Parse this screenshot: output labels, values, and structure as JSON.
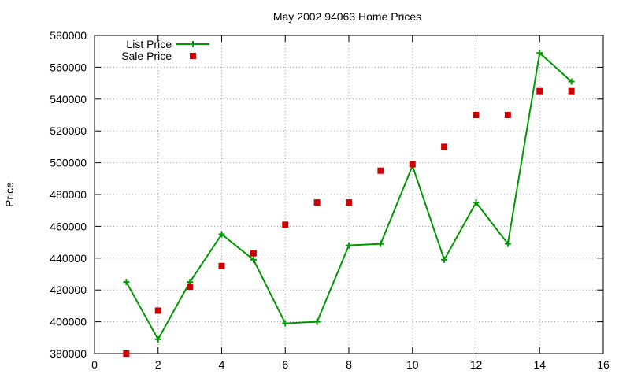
{
  "chart_data": {
    "type": "line",
    "title": "May 2002 94063 Home Prices",
    "xlabel": "",
    "ylabel": "Price",
    "xlim": [
      0,
      16
    ],
    "ylim": [
      380000,
      580000
    ],
    "xticks": [
      "0",
      "2",
      "4",
      "6",
      "8",
      "10",
      "12",
      "14",
      "16"
    ],
    "yticks": [
      "380000",
      "400000",
      "420000",
      "440000",
      "460000",
      "480000",
      "500000",
      "520000",
      "540000",
      "560000",
      "580000"
    ],
    "grid": true,
    "legend_position": "top-left",
    "x": [
      1,
      2,
      3,
      4,
      5,
      6,
      7,
      8,
      9,
      10,
      11,
      12,
      13,
      14,
      15
    ],
    "series": [
      {
        "name": "List Price",
        "style": "linespoints",
        "marker": "plus",
        "color": "#009900",
        "values": [
          425000,
          389000,
          425000,
          455000,
          439000,
          399000,
          400000,
          448000,
          449000,
          498000,
          439000,
          475000,
          449000,
          569000,
          551000
        ]
      },
      {
        "name": "Sale Price",
        "style": "points",
        "marker": "square",
        "color": "#cc0000",
        "values": [
          380000,
          407000,
          422000,
          435000,
          443000,
          461000,
          475000,
          475000,
          495000,
          499000,
          510000,
          530000,
          530000,
          545000,
          545000
        ]
      }
    ]
  }
}
